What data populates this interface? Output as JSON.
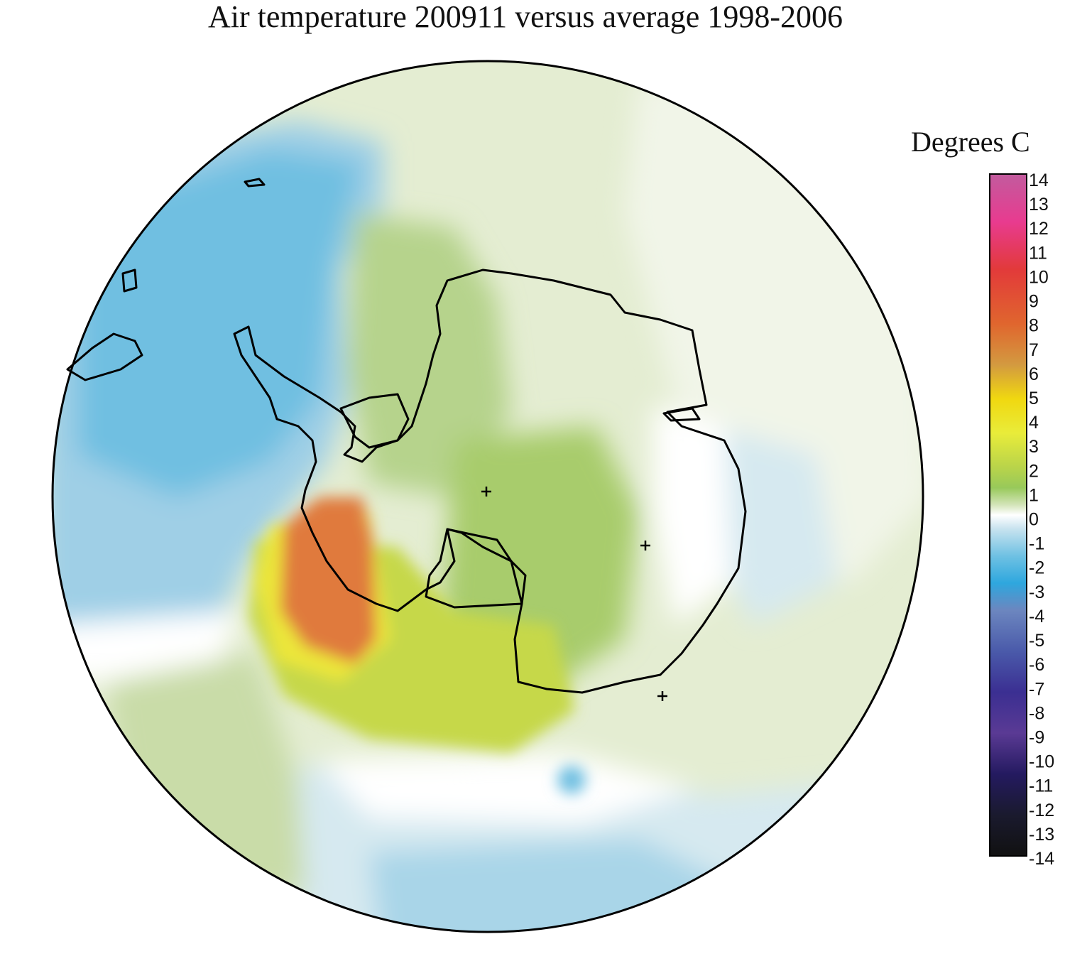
{
  "title": "Air temperature 200911 versus average 1998-2006",
  "legend": {
    "title": "Degrees C",
    "ticks": [
      "14",
      "13",
      "12",
      "11",
      "10",
      "9",
      "8",
      "7",
      "6",
      "5",
      "4",
      "3",
      "2",
      "1",
      "0",
      "-1",
      "-2",
      "-3",
      "-4",
      "-5",
      "-6",
      "-7",
      "-8",
      "-9",
      "-10",
      "-11",
      "-12",
      "-13",
      "-14"
    ],
    "range": [
      -14,
      14
    ]
  },
  "colors": {
    "strong_warm": "#e07a3c",
    "warm": "#c6d84a",
    "mild_warm": "#b6d38c",
    "slight_warm": "#e4edd2",
    "neutral": "#ffffff",
    "slight_cool": "#d6e9f0",
    "cool": "#86c7e2",
    "cold": "#3aa8dc"
  },
  "map": {
    "projection": "south-polar-stereographic",
    "markers": [
      "plus",
      "plus",
      "plus"
    ]
  }
}
